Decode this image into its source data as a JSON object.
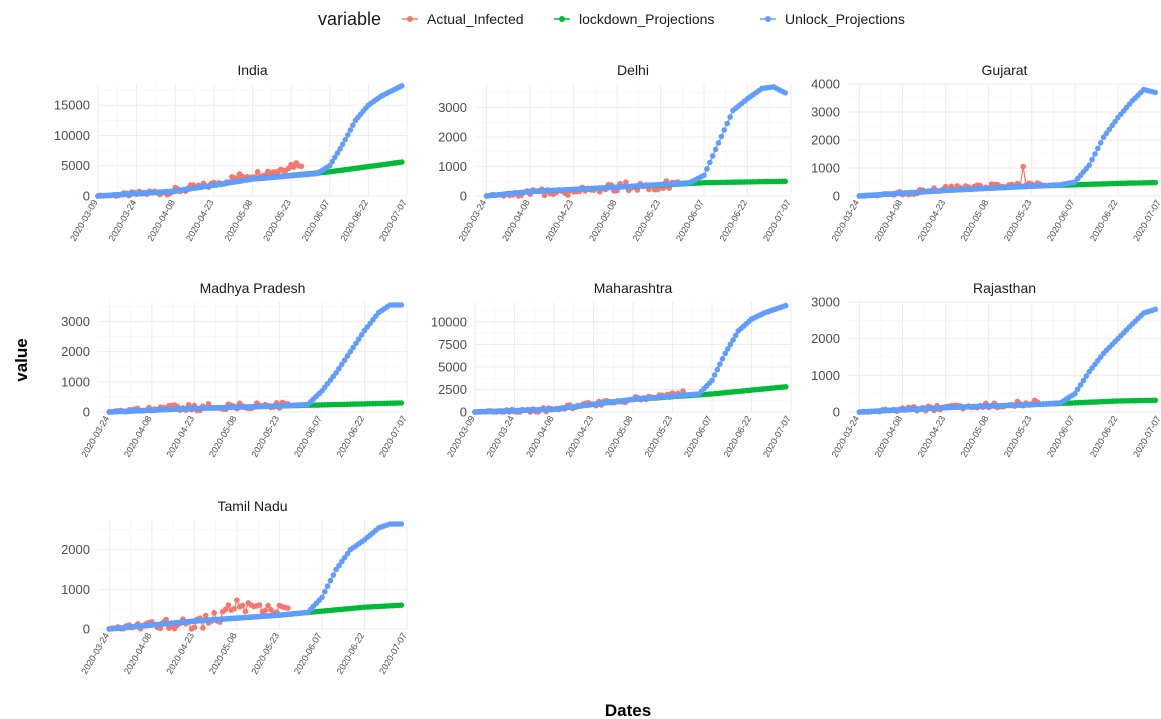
{
  "legend": {
    "title": "variable",
    "items": [
      {
        "name": "Actual_Infected",
        "color": "#F8766D"
      },
      {
        "name": "lockdown_Projections",
        "color": "#00BA38"
      },
      {
        "name": "Unlock_Projections",
        "color": "#619CFF"
      }
    ]
  },
  "chart_data": {
    "type": "line",
    "facet_type": "small-multiples",
    "xlabel": "Dates",
    "ylabel": "value",
    "grid": true,
    "legend_position": "top",
    "series_names": [
      "Actual_Infected",
      "lockdown_Projections",
      "Unlock_Projections"
    ],
    "panels": [
      {
        "title": "India",
        "x_range": [
          "2020-03-09",
          "2020-07-07"
        ],
        "xticks": [
          "2020-03-09",
          "2020-03-24",
          "2020-04-08",
          "2020-04-23",
          "2020-05-08",
          "2020-05-23",
          "2020-06-07",
          "2020-06-22",
          "2020-07-07"
        ],
        "yticks": [
          0,
          5000,
          10000,
          15000
        ],
        "ylim": [
          0,
          18500
        ],
        "actual": {
          "start": "2020-03-09",
          "end": "2020-05-27",
          "anchors": [
            [
              "2020-03-09",
              0
            ],
            [
              "2020-03-24",
              350
            ],
            [
              "2020-04-08",
              850
            ],
            [
              "2020-04-23",
              1900
            ],
            [
              "2020-05-03",
              3200
            ],
            [
              "2020-05-08",
              3500
            ],
            [
              "2020-05-13",
              3900
            ],
            [
              "2020-05-18",
              4200
            ],
            [
              "2020-05-23",
              5100
            ],
            [
              "2020-05-27",
              5400
            ]
          ],
          "noise": 550
        },
        "lockdown": {
          "start": "2020-03-09",
          "end": "2020-07-05",
          "anchors": [
            [
              "2020-03-09",
              0
            ],
            [
              "2020-04-08",
              800
            ],
            [
              "2020-05-08",
              2800
            ],
            [
              "2020-06-07",
              4000
            ],
            [
              "2020-07-05",
              5600
            ]
          ]
        },
        "unlock": {
          "start": "2020-03-09",
          "end": "2020-07-05",
          "anchors": [
            [
              "2020-03-09",
              0
            ],
            [
              "2020-04-08",
              800
            ],
            [
              "2020-05-08",
              2800
            ],
            [
              "2020-06-02",
              3700
            ],
            [
              "2020-06-07",
              5000
            ],
            [
              "2020-06-12",
              8500
            ],
            [
              "2020-06-17",
              12500
            ],
            [
              "2020-06-22",
              15000
            ],
            [
              "2020-06-27",
              16500
            ],
            [
              "2020-07-05",
              18200
            ]
          ]
        }
      },
      {
        "title": "Delhi",
        "x_range": [
          "2020-03-20",
          "2020-07-07"
        ],
        "xticks": [
          "2020-03-24",
          "2020-04-08",
          "2020-04-23",
          "2020-05-08",
          "2020-05-23",
          "2020-06-07",
          "2020-06-22",
          "2020-07-07"
        ],
        "yticks": [
          0,
          1000,
          2000,
          3000
        ],
        "ylim": [
          0,
          3800
        ],
        "actual": {
          "start": "2020-03-24",
          "end": "2020-05-29",
          "anchors": [
            [
              "2020-03-24",
              0
            ],
            [
              "2020-04-08",
              100
            ],
            [
              "2020-04-23",
              200
            ],
            [
              "2020-05-08",
              300
            ],
            [
              "2020-05-23",
              380
            ],
            [
              "2020-05-29",
              420
            ]
          ],
          "noise": 170
        },
        "lockdown": {
          "start": "2020-03-24",
          "end": "2020-07-05",
          "anchors": [
            [
              "2020-03-24",
              0
            ],
            [
              "2020-04-08",
              150
            ],
            [
              "2020-05-08",
              300
            ],
            [
              "2020-06-07",
              450
            ],
            [
              "2020-07-05",
              500
            ]
          ]
        },
        "unlock": {
          "start": "2020-03-24",
          "end": "2020-07-05",
          "anchors": [
            [
              "2020-03-24",
              0
            ],
            [
              "2020-04-08",
              150
            ],
            [
              "2020-05-08",
              300
            ],
            [
              "2020-06-02",
              450
            ],
            [
              "2020-06-07",
              700
            ],
            [
              "2020-06-12",
              1800
            ],
            [
              "2020-06-17",
              2900
            ],
            [
              "2020-06-22",
              3300
            ],
            [
              "2020-06-27",
              3650
            ],
            [
              "2020-07-01",
              3700
            ],
            [
              "2020-07-05",
              3500
            ]
          ]
        }
      },
      {
        "title": "Gujarat",
        "x_range": [
          "2020-03-20",
          "2020-07-07"
        ],
        "xticks": [
          "2020-03-24",
          "2020-04-08",
          "2020-04-23",
          "2020-05-08",
          "2020-05-23",
          "2020-06-07",
          "2020-06-22",
          "2020-07-07"
        ],
        "yticks": [
          0,
          1000,
          2000,
          3000,
          4000
        ],
        "ylim": [
          0,
          4000
        ],
        "actual": {
          "start": "2020-03-24",
          "end": "2020-05-26",
          "anchors": [
            [
              "2020-03-24",
              0
            ],
            [
              "2020-04-08",
              100
            ],
            [
              "2020-04-23",
              250
            ],
            [
              "2020-05-08",
              350
            ],
            [
              "2020-05-26",
              400
            ]
          ],
          "noise": 90,
          "spike": [
            "2020-05-20",
            1050
          ]
        },
        "lockdown": {
          "start": "2020-03-24",
          "end": "2020-07-05",
          "anchors": [
            [
              "2020-03-24",
              0
            ],
            [
              "2020-04-23",
              200
            ],
            [
              "2020-05-23",
              350
            ],
            [
              "2020-06-22",
              450
            ],
            [
              "2020-07-05",
              480
            ]
          ]
        },
        "unlock": {
          "start": "2020-03-24",
          "end": "2020-07-05",
          "anchors": [
            [
              "2020-03-24",
              0
            ],
            [
              "2020-04-23",
              200
            ],
            [
              "2020-05-23",
              350
            ],
            [
              "2020-06-02",
              400
            ],
            [
              "2020-06-07",
              500
            ],
            [
              "2020-06-12",
              1100
            ],
            [
              "2020-06-17",
              2100
            ],
            [
              "2020-06-22",
              2800
            ],
            [
              "2020-06-27",
              3400
            ],
            [
              "2020-07-01",
              3800
            ],
            [
              "2020-07-05",
              3700
            ]
          ]
        }
      },
      {
        "title": "Madhya Pradesh",
        "x_range": [
          "2020-03-20",
          "2020-07-07"
        ],
        "xticks": [
          "2020-03-24",
          "2020-04-08",
          "2020-04-23",
          "2020-05-08",
          "2020-05-23",
          "2020-06-07",
          "2020-06-22",
          "2020-07-07"
        ],
        "yticks": [
          0,
          1000,
          2000,
          3000
        ],
        "ylim": [
          0,
          3650
        ],
        "actual": {
          "start": "2020-03-24",
          "end": "2020-05-26",
          "anchors": [
            [
              "2020-03-24",
              0
            ],
            [
              "2020-04-08",
              100
            ],
            [
              "2020-04-23",
              150
            ],
            [
              "2020-05-08",
              200
            ],
            [
              "2020-05-26",
              220
            ]
          ],
          "noise": 110
        },
        "lockdown": {
          "start": "2020-03-24",
          "end": "2020-07-05",
          "anchors": [
            [
              "2020-03-24",
              0
            ],
            [
              "2020-04-23",
              120
            ],
            [
              "2020-05-23",
              200
            ],
            [
              "2020-06-22",
              270
            ],
            [
              "2020-07-05",
              300
            ]
          ]
        },
        "unlock": {
          "start": "2020-03-24",
          "end": "2020-07-05",
          "anchors": [
            [
              "2020-03-24",
              0
            ],
            [
              "2020-04-23",
              120
            ],
            [
              "2020-05-23",
              200
            ],
            [
              "2020-06-02",
              250
            ],
            [
              "2020-06-07",
              700
            ],
            [
              "2020-06-12",
              1300
            ],
            [
              "2020-06-17",
              2000
            ],
            [
              "2020-06-22",
              2700
            ],
            [
              "2020-06-27",
              3300
            ],
            [
              "2020-07-01",
              3550
            ],
            [
              "2020-07-05",
              3550
            ]
          ]
        }
      },
      {
        "title": "Maharashtra",
        "x_range": [
          "2020-03-09",
          "2020-07-07"
        ],
        "xticks": [
          "2020-03-09",
          "2020-03-24",
          "2020-04-08",
          "2020-04-23",
          "2020-05-08",
          "2020-05-23",
          "2020-06-07",
          "2020-06-22",
          "2020-07-07"
        ],
        "yticks": [
          0,
          2500,
          5000,
          7500,
          10000
        ],
        "ylim": [
          0,
          12200
        ],
        "actual": {
          "start": "2020-03-09",
          "end": "2020-05-27",
          "anchors": [
            [
              "2020-03-09",
              0
            ],
            [
              "2020-03-24",
              100
            ],
            [
              "2020-04-08",
              300
            ],
            [
              "2020-04-23",
              900
            ],
            [
              "2020-05-08",
              1400
            ],
            [
              "2020-05-23",
              2000
            ],
            [
              "2020-05-27",
              2100
            ]
          ],
          "noise": 250
        },
        "lockdown": {
          "start": "2020-03-09",
          "end": "2020-07-05",
          "anchors": [
            [
              "2020-03-09",
              0
            ],
            [
              "2020-04-08",
              300
            ],
            [
              "2020-05-08",
              1400
            ],
            [
              "2020-06-07",
              2000
            ],
            [
              "2020-07-05",
              2800
            ]
          ]
        },
        "unlock": {
          "start": "2020-03-09",
          "end": "2020-07-05",
          "anchors": [
            [
              "2020-03-09",
              0
            ],
            [
              "2020-04-08",
              300
            ],
            [
              "2020-05-08",
              1400
            ],
            [
              "2020-06-02",
              2000
            ],
            [
              "2020-06-07",
              3500
            ],
            [
              "2020-06-12",
              6500
            ],
            [
              "2020-06-17",
              9000
            ],
            [
              "2020-06-22",
              10300
            ],
            [
              "2020-06-27",
              11000
            ],
            [
              "2020-07-05",
              11800
            ]
          ]
        }
      },
      {
        "title": "Rajasthan",
        "x_range": [
          "2020-03-20",
          "2020-07-07"
        ],
        "xticks": [
          "2020-03-24",
          "2020-04-08",
          "2020-04-23",
          "2020-05-08",
          "2020-05-23",
          "2020-06-07",
          "2020-06-22",
          "2020-07-07"
        ],
        "yticks": [
          0,
          1000,
          2000,
          3000
        ],
        "ylim": [
          0,
          3000
        ],
        "actual": {
          "start": "2020-03-24",
          "end": "2020-05-26",
          "anchors": [
            [
              "2020-03-24",
              0
            ],
            [
              "2020-04-08",
              80
            ],
            [
              "2020-04-23",
              120
            ],
            [
              "2020-05-08",
              180
            ],
            [
              "2020-05-26",
              250
            ]
          ],
          "noise": 75
        },
        "lockdown": {
          "start": "2020-03-24",
          "end": "2020-07-05",
          "anchors": [
            [
              "2020-03-24",
              0
            ],
            [
              "2020-04-23",
              120
            ],
            [
              "2020-05-23",
              200
            ],
            [
              "2020-06-22",
              300
            ],
            [
              "2020-07-05",
              320
            ]
          ]
        },
        "unlock": {
          "start": "2020-03-24",
          "end": "2020-07-05",
          "anchors": [
            [
              "2020-03-24",
              0
            ],
            [
              "2020-04-23",
              120
            ],
            [
              "2020-05-23",
              200
            ],
            [
              "2020-06-02",
              250
            ],
            [
              "2020-06-07",
              500
            ],
            [
              "2020-06-12",
              1100
            ],
            [
              "2020-06-17",
              1600
            ],
            [
              "2020-06-22",
              2000
            ],
            [
              "2020-06-27",
              2400
            ],
            [
              "2020-07-01",
              2700
            ],
            [
              "2020-07-05",
              2800
            ]
          ]
        }
      },
      {
        "title": "Tamil Nadu",
        "x_range": [
          "2020-03-20",
          "2020-07-07"
        ],
        "xticks": [
          "2020-03-24",
          "2020-04-08",
          "2020-04-23",
          "2020-05-08",
          "2020-05-23",
          "2020-06-07",
          "2020-06-22",
          "2020-07-07"
        ],
        "yticks": [
          0,
          1000,
          2000
        ],
        "ylim": [
          0,
          2750
        ],
        "actual": {
          "start": "2020-03-24",
          "end": "2020-05-26",
          "anchors": [
            [
              "2020-03-24",
              0
            ],
            [
              "2020-04-08",
              80
            ],
            [
              "2020-04-23",
              100
            ],
            [
              "2020-05-01",
              300
            ],
            [
              "2020-05-08",
              600
            ],
            [
              "2020-05-13",
              550
            ],
            [
              "2020-05-18",
              450
            ],
            [
              "2020-05-26",
              600
            ]
          ],
          "noise": 170
        },
        "lockdown": {
          "start": "2020-03-24",
          "end": "2020-07-05",
          "anchors": [
            [
              "2020-03-24",
              0
            ],
            [
              "2020-04-23",
              200
            ],
            [
              "2020-05-23",
              350
            ],
            [
              "2020-06-22",
              550
            ],
            [
              "2020-07-05",
              600
            ]
          ]
        },
        "unlock": {
          "start": "2020-03-24",
          "end": "2020-07-05",
          "anchors": [
            [
              "2020-03-24",
              0
            ],
            [
              "2020-04-23",
              200
            ],
            [
              "2020-05-23",
              350
            ],
            [
              "2020-06-02",
              420
            ],
            [
              "2020-06-07",
              800
            ],
            [
              "2020-06-12",
              1500
            ],
            [
              "2020-06-17",
              2000
            ],
            [
              "2020-06-22",
              2250
            ],
            [
              "2020-06-27",
              2550
            ],
            [
              "2020-07-01",
              2650
            ],
            [
              "2020-07-05",
              2650
            ]
          ]
        }
      }
    ]
  }
}
